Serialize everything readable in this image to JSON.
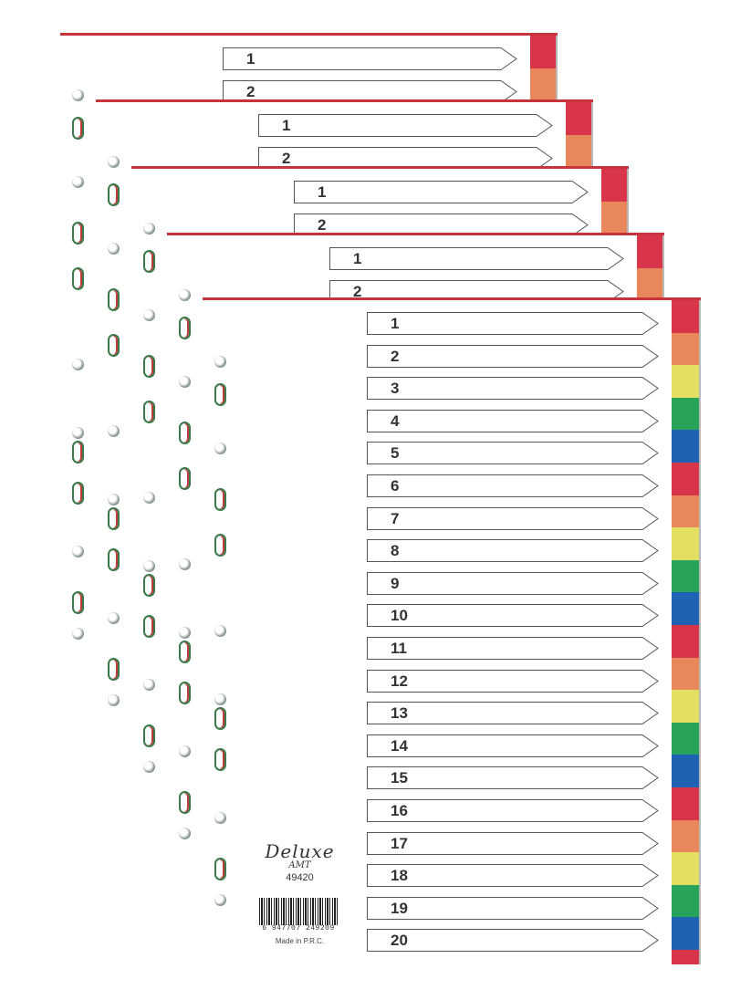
{
  "palette": {
    "sheet_border": "#c8343c",
    "tab_colors": [
      "#d8354a",
      "#e8875c",
      "#e3df63",
      "#27a35a",
      "#1f62b4"
    ]
  },
  "back_sheets": [
    {
      "labels": [
        "1",
        "2"
      ]
    },
    {
      "labels": [
        "1",
        "2"
      ]
    },
    {
      "labels": [
        "1",
        "2"
      ]
    },
    {
      "labels": [
        "1",
        "2"
      ]
    }
  ],
  "front_sheet": {
    "labels": [
      "1",
      "2",
      "3",
      "4",
      "5",
      "6",
      "7",
      "8",
      "9",
      "10",
      "11",
      "12",
      "13",
      "14",
      "15",
      "16",
      "17",
      "18",
      "19",
      "20"
    ]
  },
  "product": {
    "brand": "Deluxe",
    "sub_brand": "AMT",
    "model": "49420",
    "barcode_number": "6 947707 249209",
    "origin": "Made in P.R.C."
  }
}
